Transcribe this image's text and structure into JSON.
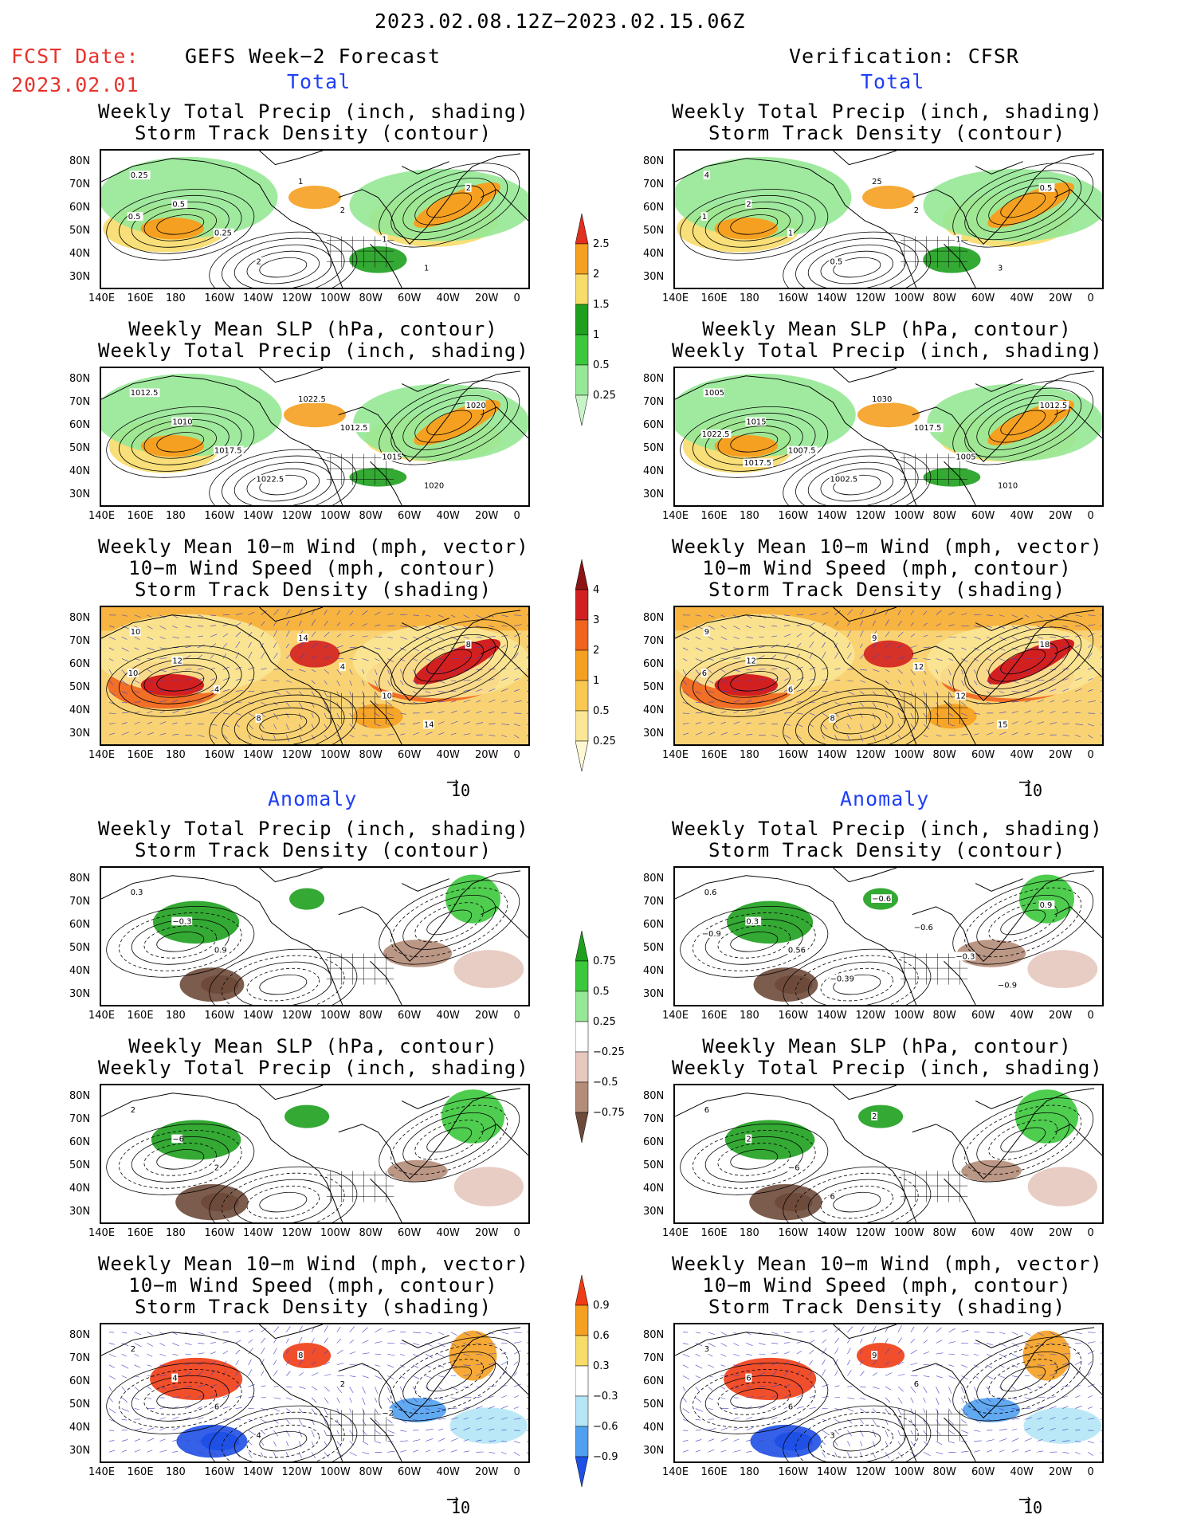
{
  "header": {
    "date_range": "2023.02.08.12Z−2023.02.15.06Z",
    "fcst_label": "FCST Date:",
    "fcst_date": "2023.02.01",
    "left_title": "GEFS Week−2 Forecast",
    "right_title": "Verification: CFSR"
  },
  "sections": {
    "total": "Total",
    "anomaly": "Anomaly"
  },
  "panel_titles": {
    "precip_storm": [
      "Weekly Total Precip (inch, shading)",
      "Storm Track Density (contour)"
    ],
    "slp_precip": [
      "Weekly Mean SLP (hPa, contour)",
      "Weekly Total Precip (inch, shading)"
    ],
    "wind": [
      "Weekly Mean 10−m Wind (mph, vector)",
      "10−m Wind Speed (mph, contour)",
      "Storm Track Density (shading)"
    ]
  },
  "axes": {
    "lat_ticks": [
      "80N",
      "70N",
      "60N",
      "50N",
      "40N",
      "30N"
    ],
    "lon_ticks": [
      "140E",
      "160E",
      "180",
      "160W",
      "140W",
      "120W",
      "100W",
      "80W",
      "60W",
      "40W",
      "20W",
      "0"
    ]
  },
  "vector_scale": "10",
  "colorbars": {
    "precip_total": {
      "labels": [
        "2.5",
        "2",
        "1.5",
        "1",
        "0.5",
        "0.25"
      ],
      "colors": [
        "#e03020",
        "#f5a020",
        "#f8dc6a",
        "#1ea01e",
        "#3cc83c",
        "#96e896",
        "#c8f5c8"
      ]
    },
    "storm_total": {
      "labels": [
        "4",
        "3",
        "2",
        "1",
        "0.5",
        "0.25"
      ],
      "colors": [
        "#8c1414",
        "#d22020",
        "#f0641e",
        "#f5a020",
        "#f8c850",
        "#fae696",
        "#fff8d2"
      ]
    },
    "precip_anom": {
      "labels": [
        "0.75",
        "0.5",
        "0.25",
        "−0.25",
        "−0.5",
        "−0.75"
      ],
      "colors": [
        "#1ea01e",
        "#3cc83c",
        "#96e896",
        "#ffffff",
        "#e6c8be",
        "#b48c78",
        "#6e4a3a"
      ]
    },
    "storm_anom": {
      "labels": [
        "0.9",
        "0.6",
        "0.3",
        "−0.3",
        "−0.6",
        "−0.9"
      ],
      "colors": [
        "#f03c14",
        "#f5a020",
        "#f8dc6a",
        "#ffffff",
        "#b4e6f5",
        "#50a0f0",
        "#1e50e6"
      ]
    }
  },
  "contour_labels": {
    "f_precip_total": [
      "0.25",
      "0.5",
      "0.25",
      "2",
      "1",
      "2",
      "1",
      "1",
      "2",
      "0.5"
    ],
    "v_precip_total": [
      "4",
      "2",
      "1",
      "0.5",
      "25",
      "2",
      "1",
      "3",
      "0.5",
      "1"
    ],
    "f_slp_total": [
      "1012.5",
      "1010",
      "1017.5",
      "1022.5",
      "1022.5",
      "1012.5",
      "1015",
      "1020",
      "1020"
    ],
    "v_slp_total": [
      "1005",
      "1015",
      "1007.5",
      "1002.5",
      "1030",
      "1017.5",
      "1005",
      "1010",
      "1012.5",
      "1022.5",
      "1017.5"
    ],
    "f_wind_total": [
      "10",
      "12",
      "4",
      "8",
      "14",
      "4",
      "10",
      "14",
      "8",
      "10"
    ],
    "v_wind_total": [
      "9",
      "12",
      "6",
      "8",
      "9",
      "12",
      "12",
      "15",
      "18",
      "6"
    ],
    "f_precip_anom": [
      "0.3",
      "−0.3",
      "0.9"
    ],
    "v_precip_anom": [
      "0.6",
      "0.3",
      "0.56",
      "−0.39",
      "−0.6",
      "−0.6",
      "−0.3",
      "−0.9",
      "0.9",
      "−0.9"
    ],
    "f_slp_anom": [
      "2",
      "−6",
      "2"
    ],
    "v_slp_anom": [
      "6",
      "2",
      "−6",
      "6",
      "2"
    ],
    "f_wind_anom": [
      "2",
      "4",
      "6",
      "4",
      "8",
      "2",
      "−2"
    ],
    "v_wind_anom": [
      "3",
      "6",
      "6",
      "3",
      "9",
      "6"
    ]
  }
}
